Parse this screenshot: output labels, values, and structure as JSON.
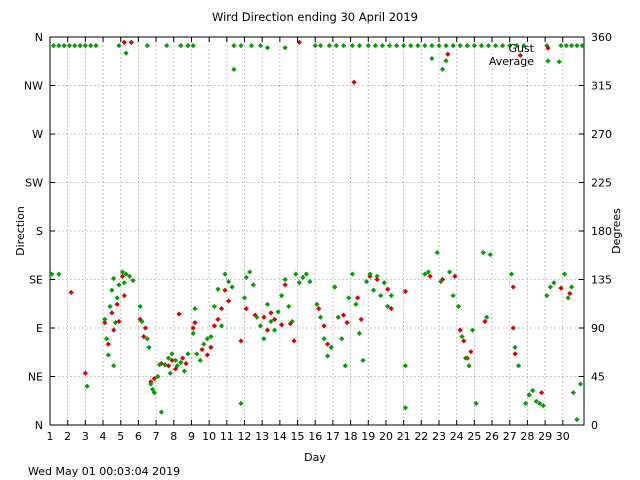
{
  "chart_data": {
    "type": "scatter",
    "title": "Wird Direction ending 30 April 2019",
    "xlabel": "Day",
    "ylabel": "Direction",
    "y2label": "Degrees",
    "footer": "Wed May 01 00:03:04 2019",
    "xlim": [
      1,
      31.2
    ],
    "ylim": [
      0,
      360
    ],
    "x_ticks": [
      1,
      2,
      3,
      4,
      5,
      6,
      7,
      8,
      9,
      10,
      11,
      12,
      13,
      14,
      15,
      16,
      17,
      18,
      19,
      20,
      21,
      22,
      23,
      24,
      25,
      26,
      27,
      28,
      29,
      30
    ],
    "y_ticks": [
      {
        "value": 0,
        "label": "N",
        "deg": "0"
      },
      {
        "value": 45,
        "label": "NE",
        "deg": "45"
      },
      {
        "value": 90,
        "label": "E",
        "deg": "90"
      },
      {
        "value": 135,
        "label": "SE",
        "deg": "135"
      },
      {
        "value": 180,
        "label": "S",
        "deg": "180"
      },
      {
        "value": 225,
        "label": "SW",
        "deg": "225"
      },
      {
        "value": 270,
        "label": "W",
        "deg": "270"
      },
      {
        "value": 315,
        "label": "NW",
        "deg": "315"
      },
      {
        "value": 360,
        "label": "N",
        "deg": "360"
      }
    ],
    "grid": true,
    "legend_position": "top-right",
    "series": [
      {
        "name": "Gust",
        "color": "#dd0000",
        "points": [
          [
            2.2,
            123
          ],
          [
            3,
            48
          ],
          [
            4.1,
            95
          ],
          [
            4.3,
            75
          ],
          [
            4.5,
            104
          ],
          [
            4.6,
            88
          ],
          [
            4.8,
            112
          ],
          [
            4.9,
            96
          ],
          [
            5.1,
            138
          ],
          [
            5.2,
            120
          ],
          [
            5.2,
            355
          ],
          [
            5.6,
            355
          ],
          [
            6.1,
            98
          ],
          [
            6.3,
            82
          ],
          [
            6.4,
            90
          ],
          [
            6.7,
            40
          ],
          [
            6.9,
            43
          ],
          [
            7.3,
            57
          ],
          [
            7.7,
            55
          ],
          [
            7.9,
            60
          ],
          [
            8.1,
            52
          ],
          [
            8.3,
            103
          ],
          [
            8.5,
            62
          ],
          [
            8.7,
            57
          ],
          [
            9.1,
            90
          ],
          [
            9.2,
            95
          ],
          [
            9.6,
            70
          ],
          [
            9.9,
            65
          ],
          [
            10.1,
            72
          ],
          [
            10.3,
            92
          ],
          [
            10.5,
            98
          ],
          [
            10.7,
            108
          ],
          [
            10.9,
            125
          ],
          [
            11.1,
            115
          ],
          [
            11.8,
            78
          ],
          [
            12.1,
            108
          ],
          [
            12.6,
            102
          ],
          [
            13.1,
            100
          ],
          [
            13.3,
            88
          ],
          [
            13.5,
            104
          ],
          [
            13.7,
            98
          ],
          [
            14.1,
            93
          ],
          [
            14.3,
            130
          ],
          [
            14.6,
            94
          ],
          [
            14.8,
            78
          ],
          [
            15.1,
            355
          ],
          [
            16.2,
            108
          ],
          [
            16.5,
            92
          ],
          [
            16.7,
            75
          ],
          [
            17.1,
            128
          ],
          [
            17.6,
            102
          ],
          [
            17.8,
            95
          ],
          [
            18.2,
            318
          ],
          [
            18.4,
            118
          ],
          [
            18.6,
            98
          ],
          [
            19.1,
            138
          ],
          [
            19.5,
            135
          ],
          [
            20.1,
            126
          ],
          [
            20.3,
            108
          ],
          [
            21.1,
            124
          ],
          [
            22.5,
            138
          ],
          [
            23.2,
            135
          ],
          [
            23.5,
            344
          ],
          [
            23.9,
            138
          ],
          [
            24.2,
            88
          ],
          [
            24.4,
            78
          ],
          [
            24.6,
            62
          ],
          [
            24.8,
            68
          ],
          [
            25.6,
            96
          ],
          [
            27.2,
            128
          ],
          [
            27.2,
            90
          ],
          [
            27.3,
            66
          ],
          [
            27.6,
            343
          ],
          [
            28.1,
            28
          ],
          [
            28.8,
            30
          ],
          [
            29.9,
            127
          ],
          [
            30.4,
            122
          ]
        ]
      },
      {
        "name": "Average",
        "color": "#00a000",
        "points": [
          [
            1.1,
            140
          ],
          [
            1.5,
            140
          ],
          [
            1.2,
            352
          ],
          [
            1.5,
            352
          ],
          [
            1.8,
            352
          ],
          [
            2.1,
            352
          ],
          [
            2.4,
            352
          ],
          [
            2.7,
            352
          ],
          [
            3,
            352
          ],
          [
            3.3,
            352
          ],
          [
            3.6,
            352
          ],
          [
            3.1,
            36
          ],
          [
            4.1,
            98
          ],
          [
            4.2,
            80
          ],
          [
            4.3,
            65
          ],
          [
            4.4,
            110
          ],
          [
            4.5,
            125
          ],
          [
            4.6,
            55
          ],
          [
            4.6,
            136
          ],
          [
            4.7,
            95
          ],
          [
            4.8,
            118
          ],
          [
            4.9,
            130
          ],
          [
            5.1,
            142
          ],
          [
            5.2,
            132
          ],
          [
            5.3,
            140
          ],
          [
            5.5,
            138
          ],
          [
            5.7,
            134
          ],
          [
            5.3,
            345
          ],
          [
            6.1,
            110
          ],
          [
            6.2,
            96
          ],
          [
            6.5,
            80
          ],
          [
            6.6,
            72
          ],
          [
            6.7,
            38
          ],
          [
            6.8,
            33
          ],
          [
            6.9,
            30
          ],
          [
            7.1,
            45
          ],
          [
            7.2,
            56
          ],
          [
            7.3,
            12
          ],
          [
            7.5,
            56
          ],
          [
            7.7,
            62
          ],
          [
            7.8,
            48
          ],
          [
            7.9,
            66
          ],
          [
            8.1,
            60
          ],
          [
            8.2,
            55
          ],
          [
            8.4,
            58
          ],
          [
            8.6,
            50
          ],
          [
            8.8,
            66
          ],
          [
            9.1,
            85
          ],
          [
            9.2,
            108
          ],
          [
            9.3,
            66
          ],
          [
            9.5,
            60
          ],
          [
            9.7,
            75
          ],
          [
            9.9,
            80
          ],
          [
            10.1,
            82
          ],
          [
            10.3,
            110
          ],
          [
            10.5,
            126
          ],
          [
            10.7,
            92
          ],
          [
            10.9,
            140
          ],
          [
            11.1,
            133
          ],
          [
            11.3,
            128
          ],
          [
            11.4,
            330
          ],
          [
            11.8,
            20
          ],
          [
            12,
            118
          ],
          [
            12.1,
            137
          ],
          [
            12.3,
            142
          ],
          [
            12.5,
            130
          ],
          [
            12.7,
            100
          ],
          [
            12.9,
            92
          ],
          [
            13.1,
            80
          ],
          [
            13.3,
            112
          ],
          [
            13.5,
            96
          ],
          [
            13.7,
            88
          ],
          [
            13.9,
            105
          ],
          [
            14.1,
            120
          ],
          [
            14.3,
            135
          ],
          [
            14.5,
            110
          ],
          [
            14.7,
            96
          ],
          [
            14.9,
            140
          ],
          [
            15.1,
            132
          ],
          [
            15.3,
            137
          ],
          [
            15.5,
            140
          ],
          [
            15.7,
            133
          ],
          [
            16.1,
            112
          ],
          [
            16.3,
            100
          ],
          [
            16.5,
            80
          ],
          [
            16.7,
            64
          ],
          [
            16.9,
            72
          ],
          [
            17.1,
            128
          ],
          [
            17.3,
            100
          ],
          [
            17.5,
            80
          ],
          [
            17.7,
            55
          ],
          [
            17.9,
            118
          ],
          [
            18.1,
            140
          ],
          [
            18.3,
            112
          ],
          [
            18.5,
            85
          ],
          [
            18.7,
            60
          ],
          [
            18.9,
            133
          ],
          [
            19.1,
            140
          ],
          [
            19.3,
            125
          ],
          [
            19.5,
            138
          ],
          [
            19.7,
            120
          ],
          [
            19.9,
            132
          ],
          [
            20.1,
            110
          ],
          [
            20.3,
            120
          ],
          [
            21.1,
            55
          ],
          [
            21.1,
            16
          ],
          [
            22.2,
            140
          ],
          [
            22.4,
            142
          ],
          [
            22.6,
            340
          ],
          [
            22.9,
            160
          ],
          [
            23.1,
            133
          ],
          [
            23.2,
            330
          ],
          [
            23.4,
            338
          ],
          [
            23.6,
            142
          ],
          [
            23.8,
            120
          ],
          [
            24.1,
            110
          ],
          [
            24.3,
            82
          ],
          [
            24.5,
            62
          ],
          [
            24.7,
            55
          ],
          [
            24.9,
            88
          ],
          [
            25.1,
            20
          ],
          [
            25.5,
            160
          ],
          [
            25.7,
            100
          ],
          [
            25.9,
            158
          ],
          [
            27.1,
            140
          ],
          [
            27.3,
            72
          ],
          [
            27.5,
            55
          ],
          [
            27.9,
            20
          ],
          [
            28.1,
            28
          ],
          [
            28.3,
            32
          ],
          [
            28.5,
            22
          ],
          [
            28.7,
            20
          ],
          [
            28.9,
            18
          ],
          [
            29.1,
            120
          ],
          [
            29.3,
            128
          ],
          [
            29.5,
            132
          ],
          [
            29.8,
            337
          ],
          [
            30.1,
            140
          ],
          [
            30.3,
            118
          ],
          [
            30.5,
            128
          ],
          [
            30.6,
            30
          ],
          [
            30.8,
            5
          ],
          [
            31,
            38
          ],
          [
            4.9,
            352
          ],
          [
            6.5,
            352
          ],
          [
            7.6,
            352
          ],
          [
            8.4,
            352
          ],
          [
            8.8,
            352
          ],
          [
            9.1,
            352
          ],
          [
            11.4,
            352
          ],
          [
            11.8,
            352
          ],
          [
            12.4,
            352
          ],
          [
            12.9,
            352
          ],
          [
            13.3,
            350
          ],
          [
            14.3,
            350
          ],
          [
            16,
            352
          ],
          [
            16.3,
            352
          ],
          [
            16.8,
            352
          ],
          [
            17.2,
            352
          ],
          [
            17.6,
            352
          ],
          [
            18.1,
            352
          ],
          [
            18.5,
            352
          ],
          [
            19,
            352
          ],
          [
            19.4,
            352
          ],
          [
            19.8,
            352
          ],
          [
            20.2,
            352
          ],
          [
            20.6,
            352
          ],
          [
            21,
            352
          ],
          [
            21.4,
            352
          ],
          [
            21.8,
            352
          ],
          [
            22.2,
            352
          ],
          [
            22.6,
            352
          ],
          [
            23,
            352
          ],
          [
            23.4,
            352
          ],
          [
            23.8,
            352
          ],
          [
            24.2,
            352
          ],
          [
            24.6,
            352
          ],
          [
            25,
            352
          ],
          [
            25.4,
            352
          ],
          [
            25.8,
            352
          ],
          [
            26.2,
            352
          ],
          [
            26.6,
            352
          ],
          [
            27,
            352
          ],
          [
            27.4,
            352
          ],
          [
            27.8,
            352
          ],
          [
            29.1,
            352
          ],
          [
            29.9,
            352
          ],
          [
            30.2,
            352
          ],
          [
            30.5,
            352
          ],
          [
            30.8,
            352
          ],
          [
            31.1,
            352
          ]
        ]
      }
    ]
  }
}
